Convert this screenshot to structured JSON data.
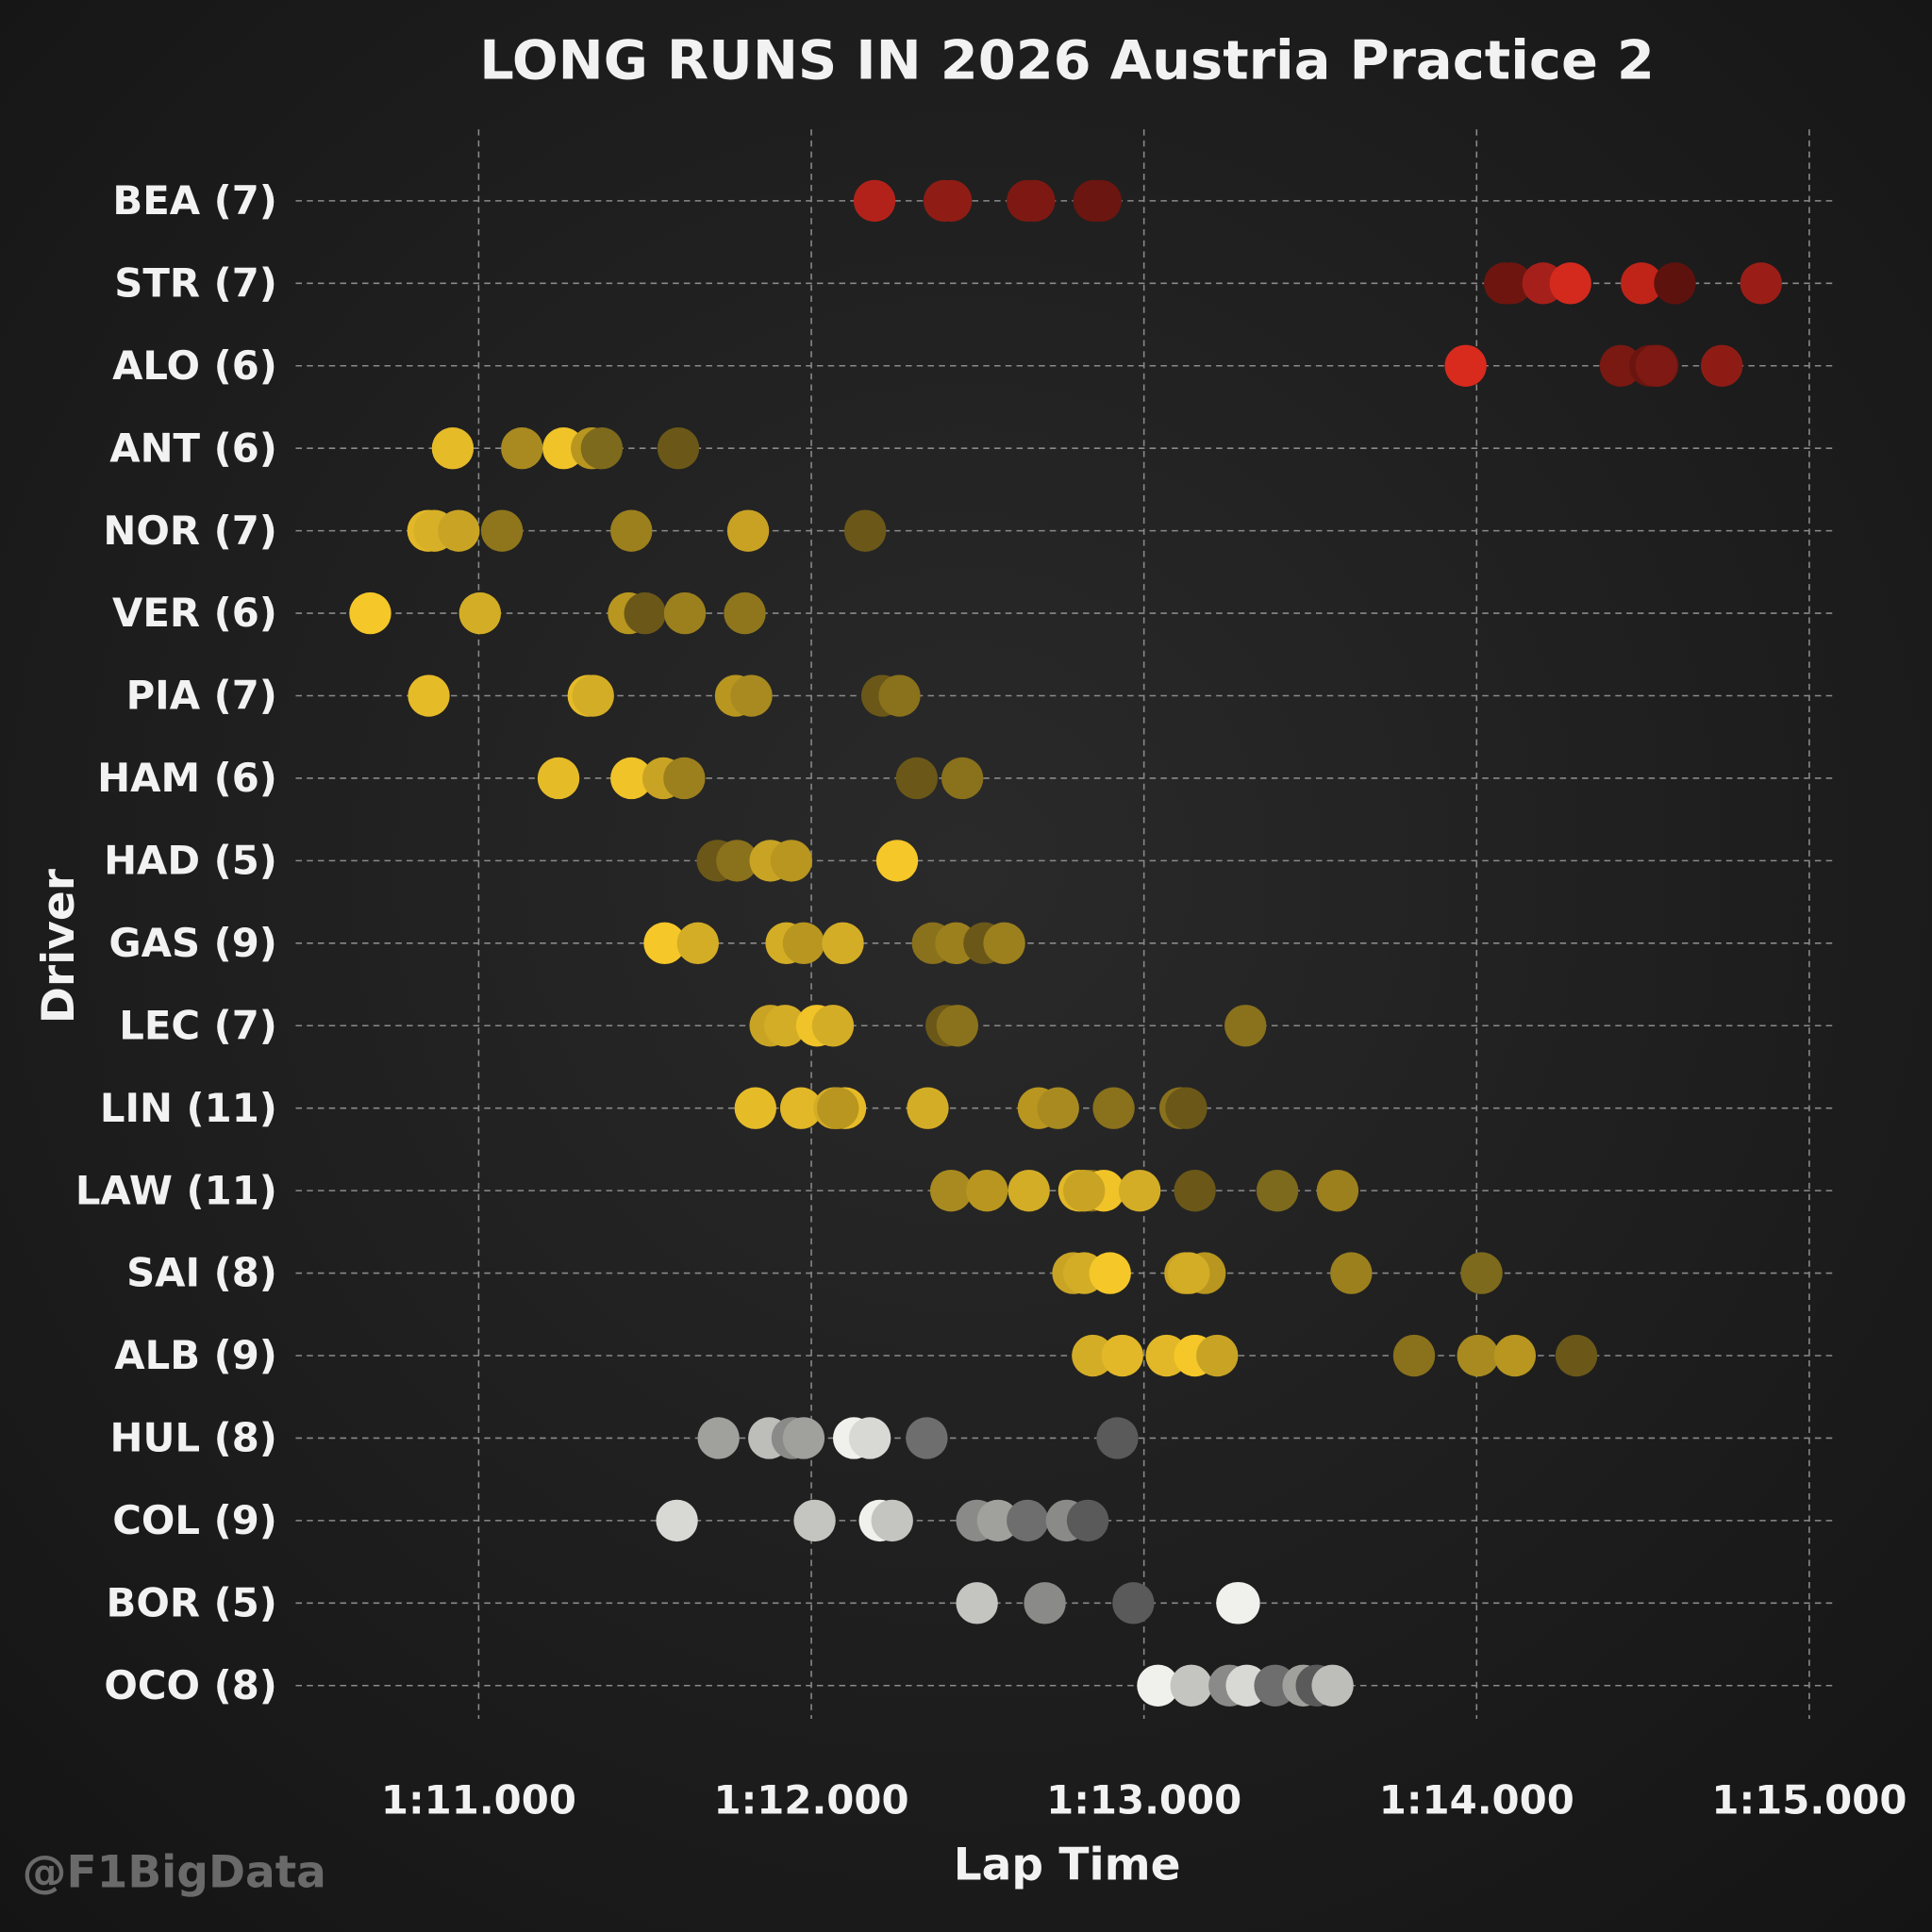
{
  "chart_data": {
    "type": "strip",
    "title": "LONG RUNS IN 2026 Austria Practice 2",
    "xlabel": "Lap Time",
    "ylabel": "Driver",
    "watermark": "@F1BigData",
    "xlim": [
      70.45,
      75.08
    ],
    "xticks": [
      {
        "value": 71,
        "label": "1:11.000"
      },
      {
        "value": 72,
        "label": "1:12.000"
      },
      {
        "value": 73,
        "label": "1:13.000"
      },
      {
        "value": 74,
        "label": "1:14.000"
      },
      {
        "value": 75,
        "label": "1:15.000"
      }
    ],
    "grid": true,
    "categories": [
      "BEA (7)",
      "STR (7)",
      "ALO (6)",
      "ANT (6)",
      "NOR (7)",
      "VER (6)",
      "PIA (7)",
      "HAM (6)",
      "HAD (5)",
      "GAS (9)",
      "LEC (7)",
      "LIN (11)",
      "LAW (11)",
      "SAI (8)",
      "ALB (9)",
      "HUL (8)",
      "COL (9)",
      "BOR (5)",
      "OCO (8)"
    ],
    "values": [
      [
        72.19,
        72.4,
        72.42,
        72.65,
        72.67,
        72.85,
        72.87
      ],
      [
        74.085,
        74.104,
        74.2,
        74.282,
        74.496,
        74.596,
        74.855
      ],
      [
        73.967,
        74.433,
        74.522,
        74.544,
        74.54,
        74.737
      ],
      [
        70.922,
        71.13,
        71.255,
        71.34,
        71.37,
        71.6
      ],
      [
        70.848,
        70.867,
        70.94,
        71.07,
        71.459,
        71.81,
        72.162
      ],
      [
        70.674,
        71.004,
        71.451,
        71.5,
        71.62,
        71.8
      ],
      [
        70.85,
        71.33,
        71.344,
        71.773,
        71.82,
        72.213,
        72.265
      ],
      [
        71.24,
        71.459,
        71.555,
        71.618,
        72.317,
        72.454
      ],
      [
        71.718,
        71.777,
        71.877,
        71.94,
        72.258
      ],
      [
        71.559,
        71.659,
        71.925,
        71.977,
        72.095,
        72.365,
        72.435,
        72.52,
        72.58
      ],
      [
        71.877,
        71.921,
        72.017,
        72.065,
        72.406,
        72.439,
        73.305
      ],
      [
        71.832,
        71.969,
        72.069,
        72.102,
        72.35,
        72.683,
        72.742,
        72.909,
        73.109,
        73.127,
        72.08
      ],
      [
        72.42,
        72.528,
        72.654,
        72.805,
        72.842,
        72.879,
        72.987,
        73.153,
        73.401,
        73.582,
        72.82
      ],
      [
        72.787,
        72.82,
        72.898,
        73.124,
        73.183,
        73.623,
        74.015,
        73.135
      ],
      [
        72.846,
        72.935,
        73.068,
        73.153,
        73.22,
        73.812,
        74.004,
        74.115,
        74.3
      ],
      [
        71.721,
        71.873,
        71.943,
        71.977,
        72.128,
        72.176,
        72.347,
        72.92
      ],
      [
        71.596,
        72.01,
        72.206,
        72.243,
        72.498,
        72.561,
        72.65,
        72.768,
        72.831
      ],
      [
        72.498,
        72.702,
        72.968,
        73.286,
        73.28
      ],
      [
        73.042,
        73.142,
        73.257,
        73.309,
        73.394,
        73.479,
        73.519,
        73.567
      ]
    ],
    "colors": [
      [
        "#b3221a",
        "#8f1d15",
        "#8f1d15",
        "#7d1912",
        "#7d1912",
        "#6b1610",
        "#6b1610"
      ],
      [
        "#6e1510",
        "#6e1510",
        "#a5201a",
        "#d42a1e",
        "#c02419",
        "#5e120e",
        "#9a1e17"
      ],
      [
        "#d92a1e",
        "#7a1812",
        "#6a1510",
        "#6a1510",
        "#7e1913",
        "#8e1c15"
      ],
      [
        "#e6bb28",
        "#a88a20",
        "#f0c328",
        "#b8961f",
        "#7d6a1c",
        "#6b5818"
      ],
      [
        "#e2b828",
        "#d8b027",
        "#c9a424",
        "#8f761c",
        "#9c801d",
        "#c9a224",
        "#6b5818"
      ],
      [
        "#f5c728",
        "#d4ad26",
        "#b8961f",
        "#6b5818",
        "#9c801d",
        "#8f761c"
      ],
      [
        "#e6bb28",
        "#e6bb28",
        "#d4ad26",
        "#b8961f",
        "#a88a20",
        "#6b5818",
        "#8a711c"
      ],
      [
        "#e6bb28",
        "#f0c328",
        "#c9a424",
        "#9c801d",
        "#6b5818",
        "#8a711c"
      ],
      [
        "#6b5818",
        "#8a711c",
        "#c9a424",
        "#b8961f",
        "#f5c728"
      ],
      [
        "#f5c728",
        "#d4ad26",
        "#d4ad26",
        "#b8961f",
        "#d4ad26",
        "#8a711c",
        "#9c801d",
        "#6b5818",
        "#9c801d"
      ],
      [
        "#c9a424",
        "#d4ad26",
        "#f0c328",
        "#d4ad26",
        "#6b5818",
        "#8a711c",
        "#8a711c"
      ],
      [
        "#e6bb28",
        "#e2b828",
        "#d4ad26",
        "#e6bb28",
        "#d4ad26",
        "#b8961f",
        "#a88a20",
        "#8a711c",
        "#8a711c",
        "#6b5818",
        "#b8961f"
      ],
      [
        "#a88a20",
        "#b8961f",
        "#d4ad26",
        "#e2b828",
        "#8a711c",
        "#f0c328",
        "#d4ad26",
        "#6b5818",
        "#7d6a1c",
        "#9c801d",
        "#c9a424"
      ],
      [
        "#c9a424",
        "#d4ad26",
        "#f5c728",
        "#c9a424",
        "#b8961f",
        "#9c801d",
        "#7d6a1c",
        "#d4ad26"
      ],
      [
        "#d4ad26",
        "#e2b828",
        "#e2b828",
        "#f5c728",
        "#c9a424",
        "#8a711c",
        "#a88a20",
        "#b8961f",
        "#6b5818"
      ],
      [
        "#a0a09c",
        "#bdbdba",
        "#8a8a88",
        "#a0a09c",
        "#f0f0ec",
        "#d8d8d4",
        "#6e6e6e",
        "#5a5a5a"
      ],
      [
        "#d8d8d4",
        "#c4c4c0",
        "#f0f0ec",
        "#c4c4c0",
        "#8a8a88",
        "#a0a09c",
        "#6e6e6e",
        "#8a8a88",
        "#5a5a5a"
      ],
      [
        "#c4c4c0",
        "#8a8a88",
        "#5a5a5a",
        "#f0f0ec",
        "#f0f0ec"
      ],
      [
        "#f0f0ec",
        "#c4c4c0",
        "#8a8a88",
        "#d8d8d4",
        "#6e6e6e",
        "#a0a09c",
        "#5a5a5a",
        "#bdbdba"
      ]
    ]
  }
}
